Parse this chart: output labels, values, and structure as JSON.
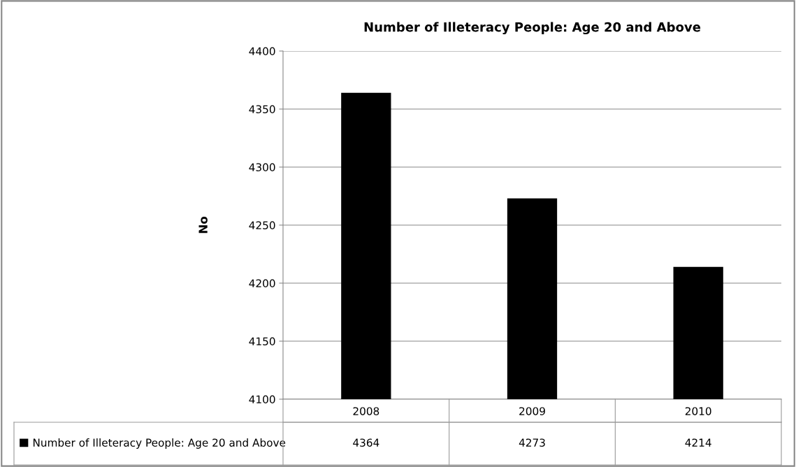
{
  "chart_data": {
    "type": "bar",
    "title": "Number of Illeteracy People: Age 20 and Above",
    "ylabel": "No",
    "categories": [
      "2008",
      "2009",
      "2010"
    ],
    "series": [
      {
        "name": "Number of Illeteracy People: Age 20 and Above",
        "color": "#000000",
        "values": [
          4364,
          4273,
          4214
        ]
      }
    ],
    "ylim": [
      4100,
      4400
    ],
    "yticks": [
      4100,
      4150,
      4200,
      4250,
      4300,
      4350,
      4400
    ],
    "grid": "y",
    "legend": "bottom",
    "data_labels": true
  }
}
